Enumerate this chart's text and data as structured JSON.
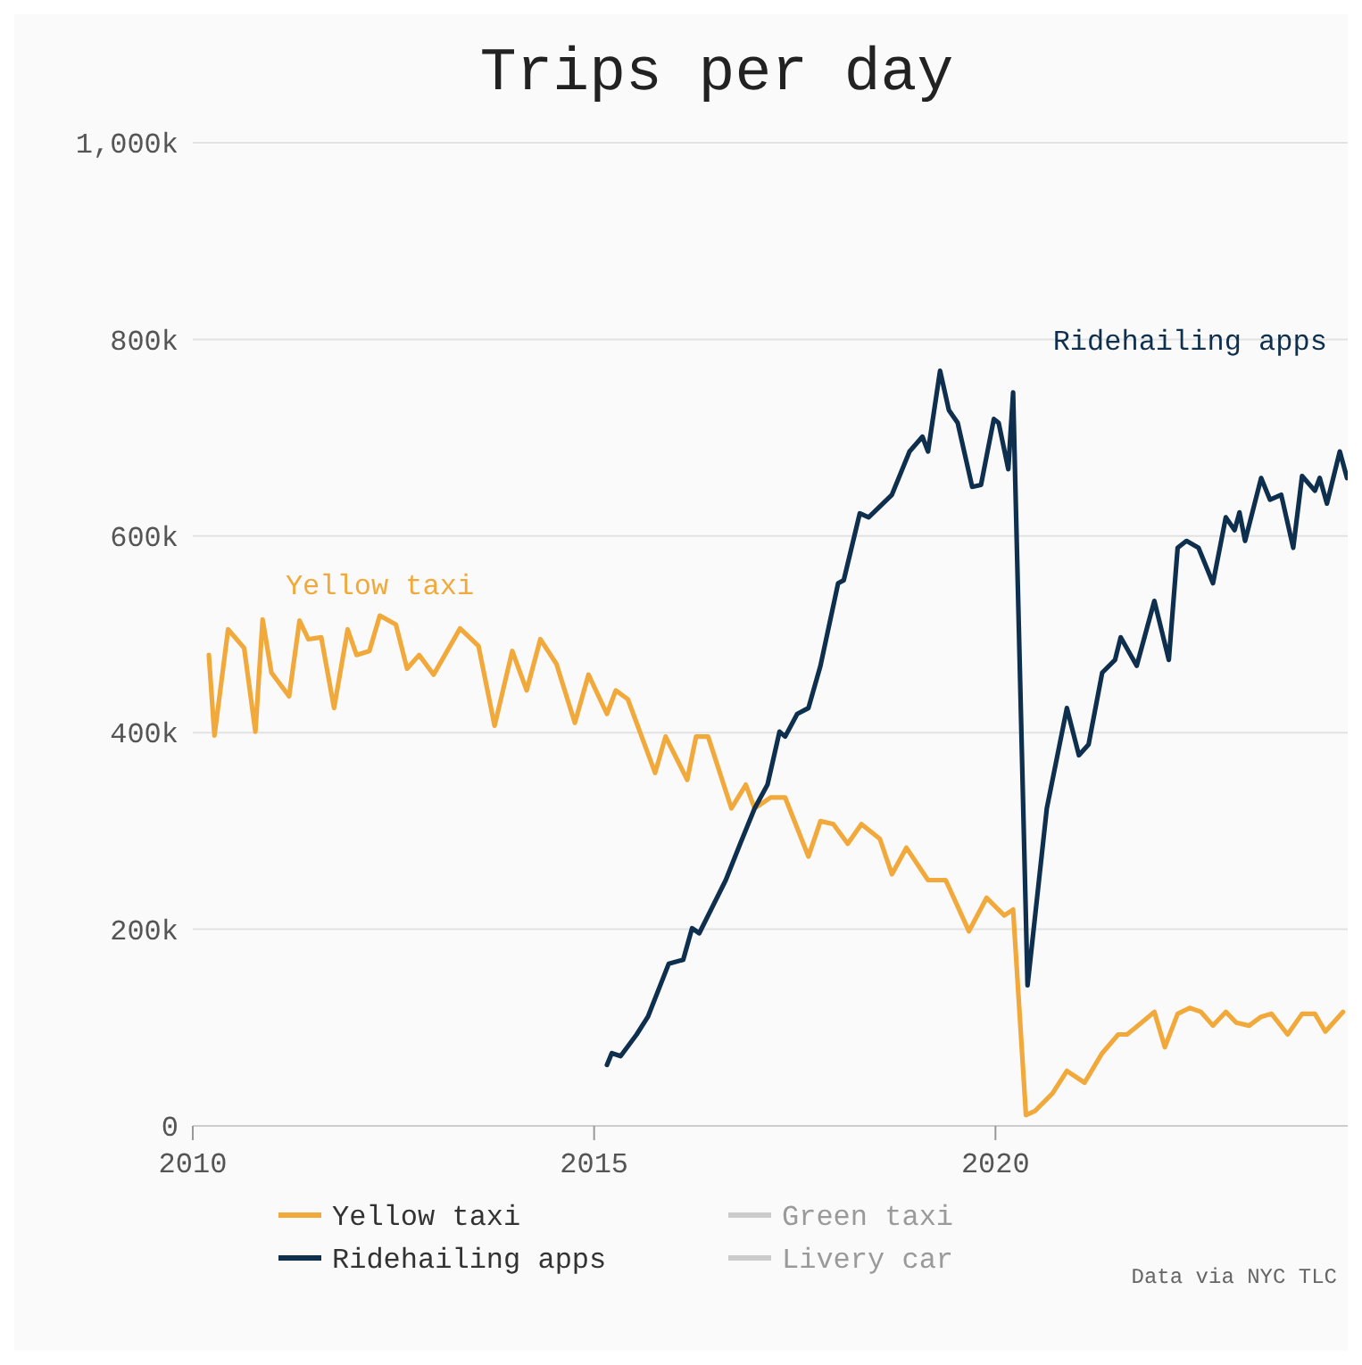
{
  "chart_data": {
    "type": "line",
    "title": "Trips per day",
    "xlim": [
      2010,
      2024.5
    ],
    "xticks": [
      2010,
      2015,
      2020
    ],
    "ylim": [
      0,
      1000
    ],
    "yticks": [
      0,
      {
        "value": 200,
        "label": "200k"
      },
      {
        "value": 400,
        "label": "400k"
      },
      {
        "value": 600,
        "label": "600k"
      },
      {
        "value": 800,
        "label": "800k"
      },
      {
        "value": 1000,
        "label": "1,000k"
      }
    ],
    "grid": "y",
    "legend": "bottom",
    "marker": "none",
    "line_style": "solid",
    "series": [
      {
        "name": "Yellow taxi",
        "color": "#f2a93b",
        "x": [
          2010.2,
          2010.27,
          2010.44,
          2010.64,
          2010.78,
          2010.87,
          2010.98,
          2011.2,
          2011.33,
          2011.44,
          2011.6,
          2011.76,
          2011.93,
          2012.04,
          2012.2,
          2012.33,
          2012.53,
          2012.67,
          2012.82,
          2013,
          2013.33,
          2013.56,
          2013.76,
          2013.98,
          2014.16,
          2014.33,
          2014.53,
          2014.76,
          2014.93,
          2015.16,
          2015.27,
          2015.42,
          2015.76,
          2015.89,
          2016.16,
          2016.27,
          2016.42,
          2016.71,
          2016.89,
          2017,
          2017.2,
          2017.38,
          2017.67,
          2017.82,
          2017.98,
          2018.16,
          2018.33,
          2018.56,
          2018.71,
          2018.89,
          2019.16,
          2019.38,
          2019.67,
          2019.89,
          2020.11,
          2020.22,
          2020.38,
          2020.49,
          2020.71,
          2020.89,
          2021.11,
          2021.33,
          2021.53,
          2021.64,
          2021.82,
          2021.98,
          2022.11,
          2022.27,
          2022.42,
          2022.56,
          2022.71,
          2022.87,
          2023,
          2023.16,
          2023.31,
          2023.44,
          2023.64,
          2023.82,
          2023.98,
          2024.11,
          2024.33
        ],
        "values": [
          479,
          397,
          505,
          486,
          401,
          515,
          461,
          437,
          514,
          495,
          497,
          425,
          505,
          479,
          483,
          519,
          510,
          465,
          479,
          459,
          506,
          488,
          407,
          483,
          443,
          495,
          470,
          410,
          459,
          419,
          443,
          434,
          359,
          396,
          352,
          396,
          396,
          323,
          347,
          323,
          334,
          334,
          274,
          310,
          307,
          287,
          307,
          292,
          256,
          283,
          250,
          250,
          198,
          232,
          214,
          220,
          11,
          15,
          33,
          56,
          44,
          74,
          93,
          93,
          105,
          116,
          80,
          114,
          120,
          116,
          102,
          116,
          105,
          102,
          111,
          114,
          93,
          114,
          114,
          96,
          116
        ]
      },
      {
        "name": "Ridehailing apps",
        "color": "#0e2f4d",
        "x": [
          2015.16,
          2015.22,
          2015.33,
          2015.53,
          2015.67,
          2015.93,
          2016.11,
          2016.22,
          2016.31,
          2016.64,
          2016.82,
          2017,
          2017.16,
          2017.31,
          2017.38,
          2017.53,
          2017.67,
          2017.82,
          2018.04,
          2018.11,
          2018.31,
          2018.42,
          2018.71,
          2018.93,
          2019.09,
          2019.16,
          2019.31,
          2019.42,
          2019.53,
          2019.71,
          2019.82,
          2019.98,
          2020.04,
          2020.16,
          2020.22,
          2020.4,
          2020.64,
          2020.89,
          2021.04,
          2021.16,
          2021.33,
          2021.49,
          2021.56,
          2021.76,
          2021.98,
          2022.16,
          2022.27,
          2022.38,
          2022.53,
          2022.71,
          2022.87,
          2022.98,
          2023.04,
          2023.11,
          2023.31,
          2023.42,
          2023.56,
          2023.71,
          2023.82,
          2023.98,
          2024.04,
          2024.13,
          2024.29,
          2024.38
        ],
        "values": [
          62,
          74,
          71,
          93,
          111,
          165,
          169,
          201,
          196,
          250,
          287,
          323,
          347,
          401,
          396,
          419,
          425,
          468,
          552,
          555,
          623,
          619,
          642,
          686,
          701,
          686,
          768,
          728,
          715,
          650,
          652,
          719,
          715,
          668,
          746,
          143,
          323,
          425,
          377,
          388,
          461,
          474,
          497,
          468,
          534,
          474,
          588,
          595,
          588,
          552,
          619,
          606,
          624,
          595,
          659,
          637,
          642,
          588,
          661,
          646,
          659,
          633,
          686,
          659
        ]
      },
      {
        "name": "Green taxi",
        "color": "#cccccc",
        "values": [
          null
        ]
      },
      {
        "name": "Livery car",
        "color": "#cccccc",
        "values": [
          null
        ]
      }
    ],
    "annotations": [
      "Data via NYC TLC"
    ]
  }
}
